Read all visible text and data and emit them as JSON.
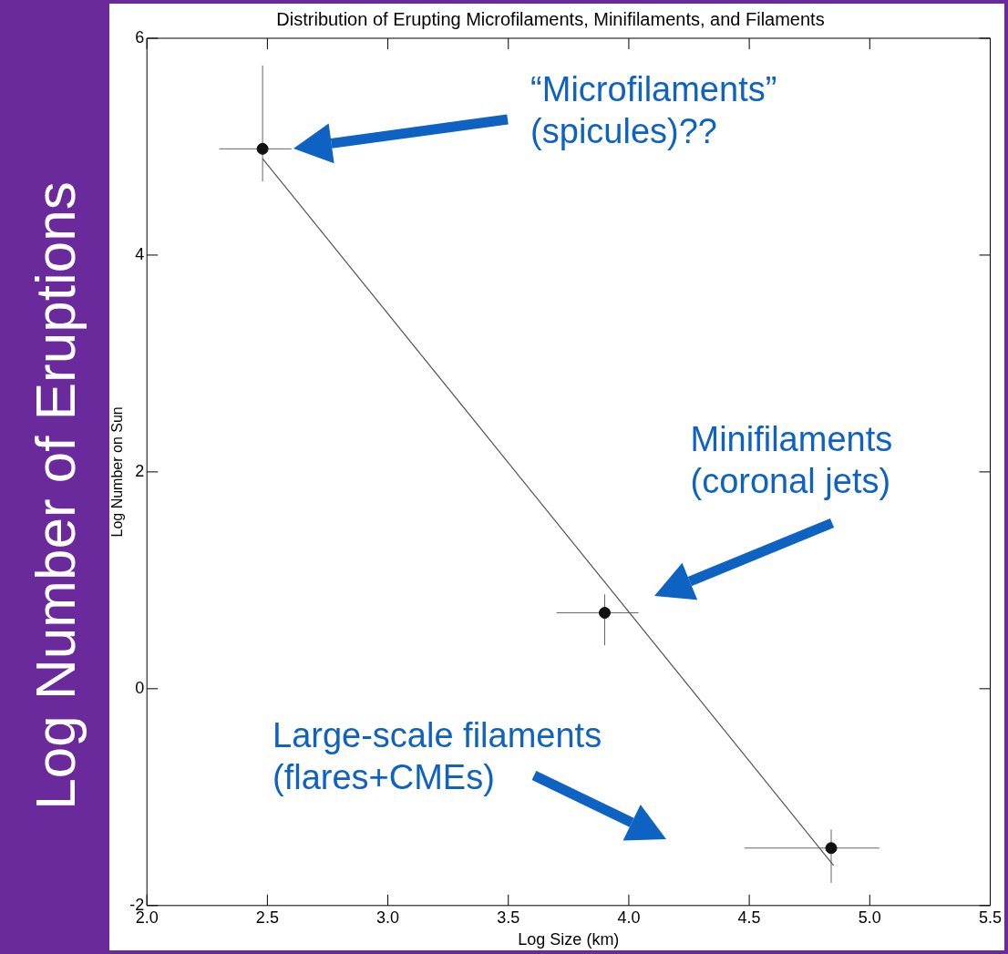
{
  "chart_data": {
    "type": "scatter",
    "title": "Distribution of Erupting Microfilaments, Minifilaments, and Filaments",
    "xlabel": "Log Size (km)",
    "ylabel": "Log Number on Sun",
    "xlim": [
      2.0,
      5.5
    ],
    "xticks": [
      {
        "value": 2,
        "label": "2.0"
      },
      {
        "value": 2.5,
        "label": "2.5"
      },
      {
        "value": 3,
        "label": "3.0"
      },
      {
        "value": 3.5,
        "label": "3.5"
      },
      {
        "value": 4,
        "label": "4.0"
      },
      {
        "value": 4.5,
        "label": "4.5"
      },
      {
        "value": 5,
        "label": "5.0"
      },
      {
        "value": 5.5,
        "label": "5.5"
      }
    ],
    "ylim": [
      -2,
      6
    ],
    "yticks": [
      -2,
      0,
      2,
      4,
      6
    ],
    "grid": false,
    "legend": false,
    "series": [
      {
        "marker": "circle",
        "color": "#111111",
        "x": [
          2.48,
          3.9,
          4.84
        ],
        "values": [
          4.98,
          0.7,
          -1.47
        ],
        "errors": [
          [
            4.68,
            5.75
          ],
          [
            0.4,
            0.87
          ],
          [
            -1.79,
            -1.3
          ]
        ],
        "xerrors": [
          [
            2.3,
            2.6
          ],
          [
            3.7,
            4.04
          ],
          [
            4.48,
            5.04
          ]
        ]
      },
      {
        "type": "line",
        "color": "#555555",
        "x": [
          2.48,
          4.85
        ],
        "values": [
          4.89,
          -1.63
        ]
      }
    ],
    "annotations": [
      "“Microfilaments”\n(spicules)??",
      "Minifilaments\n(coronal jets)",
      "Large-scale filaments\n(flares+CMEs)",
      "Log Number of Eruptions"
    ]
  }
}
